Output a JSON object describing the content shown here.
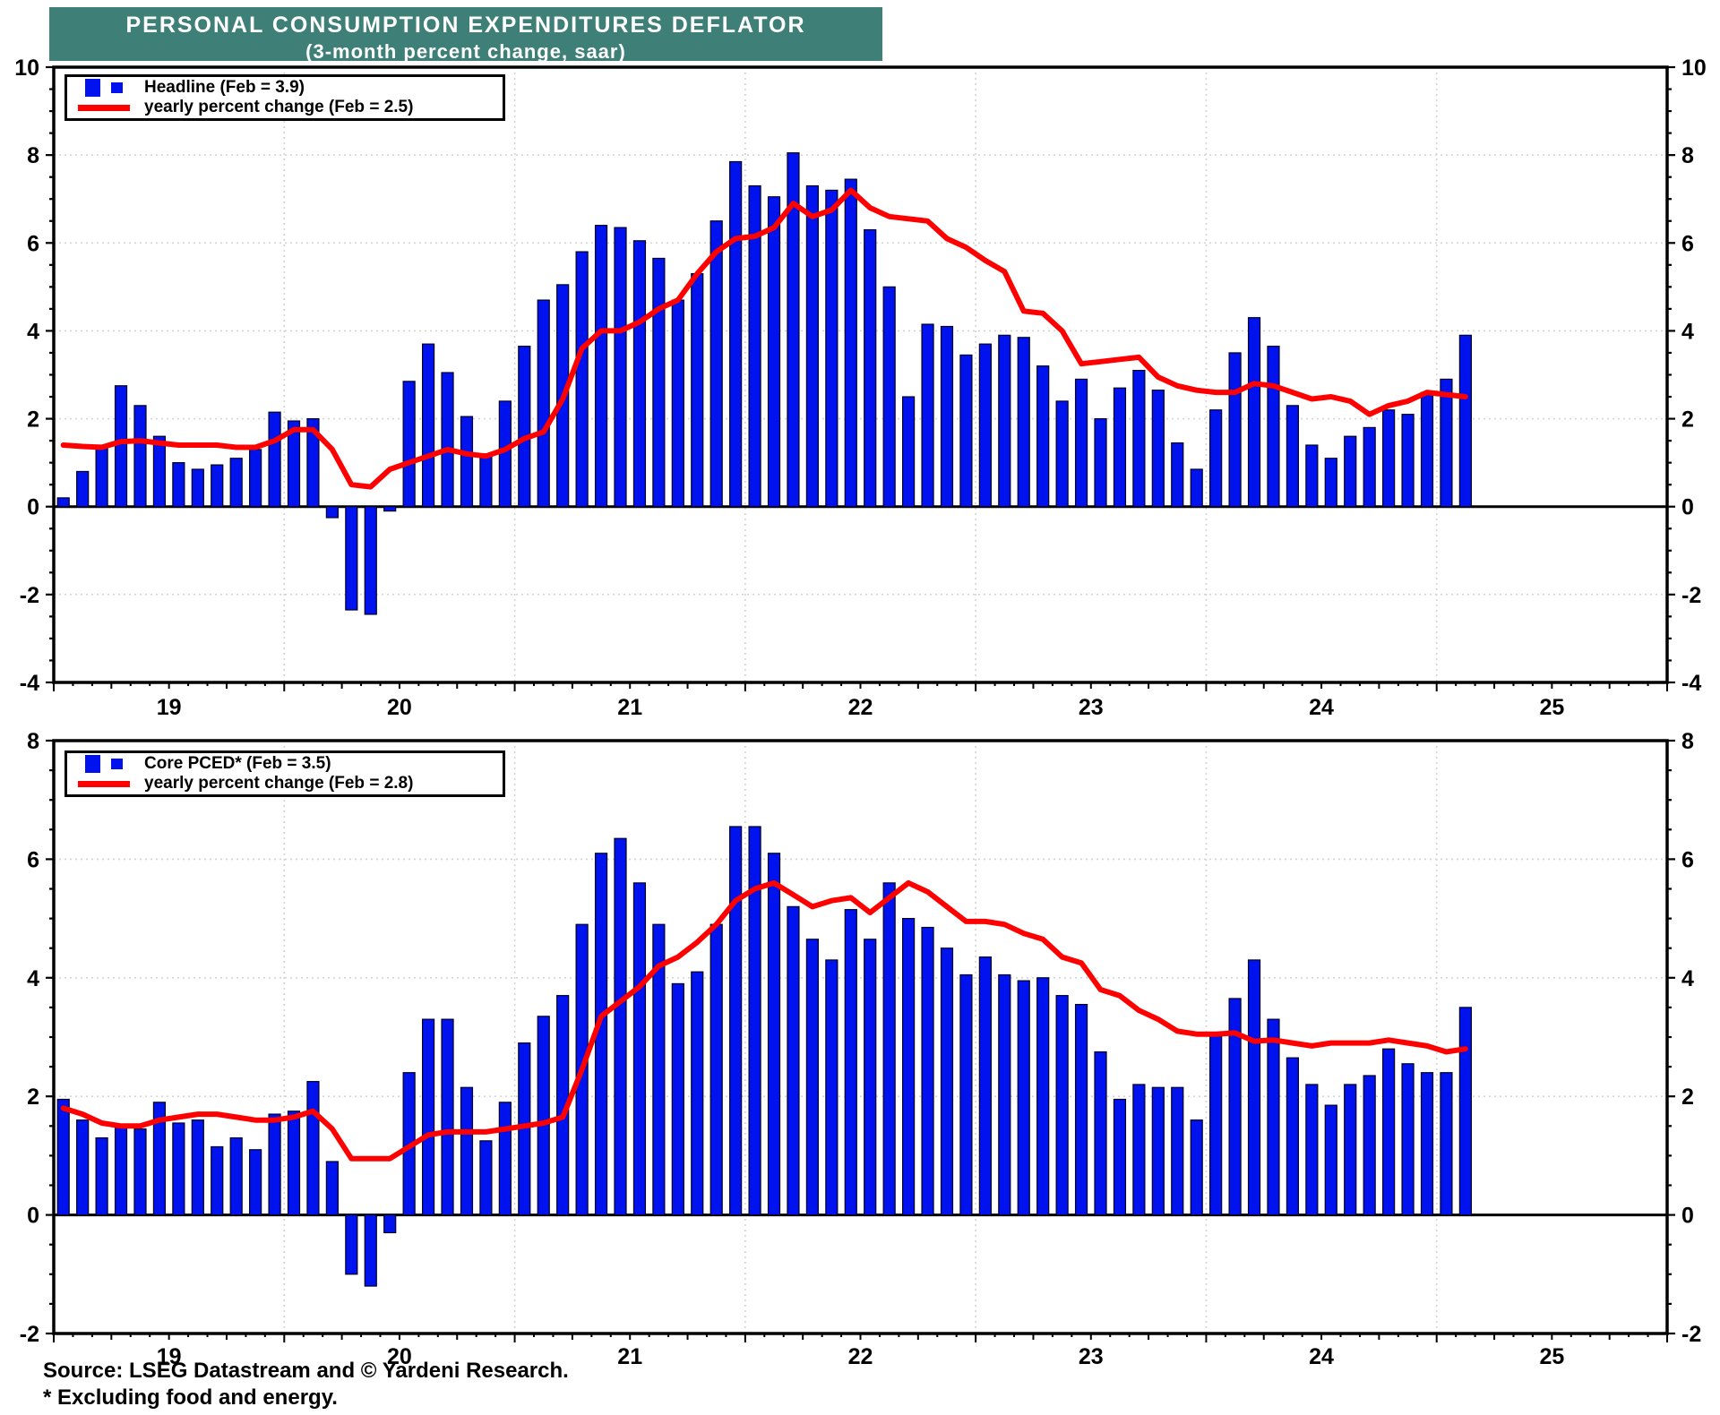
{
  "title": {
    "line1": "PERSONAL CONSUMPTION EXPENDITURES DEFLATOR",
    "line2": "(3-month percent change, saar)"
  },
  "footer": {
    "source": "Source: LSEG Datastream and © Yardeni Research.",
    "note": "* Excluding food and energy."
  },
  "colors": {
    "bar": "#0013EE",
    "line": "#FF0000",
    "banner": "#3E8077",
    "grid": "#D4D4D4",
    "axis": "#000000"
  },
  "x_axis": {
    "start": "2019-01",
    "end": "2025-12",
    "year_labels": [
      "19",
      "20",
      "21",
      "22",
      "23",
      "24",
      "25"
    ]
  },
  "chart_data": [
    {
      "type": "bar+line",
      "name": "headline-pce-deflator",
      "title": "Headline PCE deflator, 3-month percent change saar vs yearly percent change",
      "legend": [
        "Headline (Feb = 3.9)",
        "yearly percent change (Feb = 2.5)"
      ],
      "legend_position": "top-left",
      "grid": true,
      "ylim": [
        -4,
        10
      ],
      "yticks": [
        10,
        8,
        6,
        4,
        2,
        0,
        -2,
        -4
      ],
      "months_start": "2019-01",
      "months_end": "2025-02",
      "bars": [
        0.2,
        0.8,
        1.4,
        2.75,
        2.3,
        1.6,
        1.0,
        0.85,
        0.95,
        1.1,
        1.3,
        2.15,
        1.95,
        2.0,
        -0.25,
        -2.35,
        -2.45,
        -0.1,
        2.85,
        3.7,
        3.05,
        2.05,
        1.2,
        2.4,
        3.65,
        4.7,
        5.05,
        5.8,
        6.4,
        6.35,
        6.05,
        5.65,
        4.7,
        5.3,
        6.5,
        7.85,
        7.3,
        7.05,
        8.05,
        7.3,
        7.2,
        7.45,
        6.3,
        5.0,
        2.5,
        4.15,
        4.1,
        3.45,
        3.7,
        3.9,
        3.85,
        3.2,
        2.4,
        2.9,
        2.0,
        2.7,
        3.1,
        2.65,
        1.45,
        0.85,
        2.2,
        3.5,
        4.3,
        3.65,
        2.3,
        1.4,
        1.1,
        1.6,
        1.8,
        2.2,
        2.1,
        2.6,
        2.9,
        3.9
      ],
      "line": [
        1.4,
        1.37,
        1.35,
        1.48,
        1.5,
        1.45,
        1.4,
        1.4,
        1.4,
        1.35,
        1.35,
        1.5,
        1.75,
        1.75,
        1.3,
        0.5,
        0.45,
        0.85,
        1.0,
        1.15,
        1.3,
        1.2,
        1.15,
        1.3,
        1.55,
        1.7,
        2.45,
        3.6,
        4.0,
        4.0,
        4.2,
        4.5,
        4.7,
        5.3,
        5.8,
        6.1,
        6.15,
        6.35,
        6.9,
        6.6,
        6.75,
        7.2,
        6.8,
        6.6,
        6.55,
        6.5,
        6.1,
        5.9,
        5.6,
        5.35,
        4.45,
        4.4,
        4.0,
        3.25,
        3.3,
        3.35,
        3.4,
        2.95,
        2.75,
        2.65,
        2.6,
        2.6,
        2.8,
        2.75,
        2.6,
        2.45,
        2.5,
        2.4,
        2.1,
        2.3,
        2.4,
        2.6,
        2.55,
        2.5
      ]
    },
    {
      "type": "bar+line",
      "name": "core-pced",
      "title": "Core PCED (excluding food and energy), 3-month percent change saar vs yearly percent change",
      "legend": [
        "Core PCED* (Feb = 3.5)",
        "yearly percent change (Feb = 2.8)"
      ],
      "legend_position": "top-left",
      "grid": true,
      "ylim": [
        -2,
        8
      ],
      "yticks": [
        8,
        6,
        4,
        2,
        0,
        -2
      ],
      "months_start": "2019-01",
      "months_end": "2025-02",
      "bars": [
        1.95,
        1.6,
        1.3,
        1.5,
        1.45,
        1.9,
        1.55,
        1.6,
        1.15,
        1.3,
        1.1,
        1.7,
        1.75,
        2.25,
        0.9,
        -1.0,
        -1.2,
        -0.3,
        2.4,
        3.3,
        3.3,
        2.15,
        1.25,
        1.9,
        2.9,
        3.35,
        3.7,
        4.9,
        6.1,
        6.35,
        5.6,
        4.9,
        3.9,
        4.1,
        4.9,
        6.55,
        6.55,
        6.1,
        5.2,
        4.65,
        4.3,
        5.15,
        4.65,
        5.6,
        5.0,
        4.85,
        4.5,
        4.05,
        4.35,
        4.05,
        3.95,
        4.0,
        3.7,
        3.55,
        2.75,
        1.95,
        2.2,
        2.15,
        2.15,
        1.6,
        3.05,
        3.65,
        4.3,
        3.3,
        2.65,
        2.2,
        1.85,
        2.2,
        2.35,
        2.8,
        2.55,
        2.4,
        2.4,
        3.5
      ],
      "line": [
        1.8,
        1.7,
        1.55,
        1.5,
        1.5,
        1.6,
        1.65,
        1.7,
        1.7,
        1.65,
        1.6,
        1.6,
        1.65,
        1.75,
        1.45,
        0.95,
        0.95,
        0.95,
        1.15,
        1.35,
        1.4,
        1.4,
        1.4,
        1.45,
        1.5,
        1.55,
        1.65,
        2.45,
        3.35,
        3.6,
        3.85,
        4.2,
        4.35,
        4.6,
        4.9,
        5.3,
        5.5,
        5.6,
        5.4,
        5.2,
        5.3,
        5.35,
        5.1,
        5.35,
        5.6,
        5.45,
        5.2,
        4.95,
        4.95,
        4.9,
        4.75,
        4.65,
        4.35,
        4.25,
        3.8,
        3.7,
        3.45,
        3.3,
        3.1,
        3.05,
        3.05,
        3.07,
        2.93,
        2.95,
        2.9,
        2.85,
        2.9,
        2.9,
        2.9,
        2.95,
        2.9,
        2.85,
        2.75,
        2.8
      ]
    }
  ]
}
